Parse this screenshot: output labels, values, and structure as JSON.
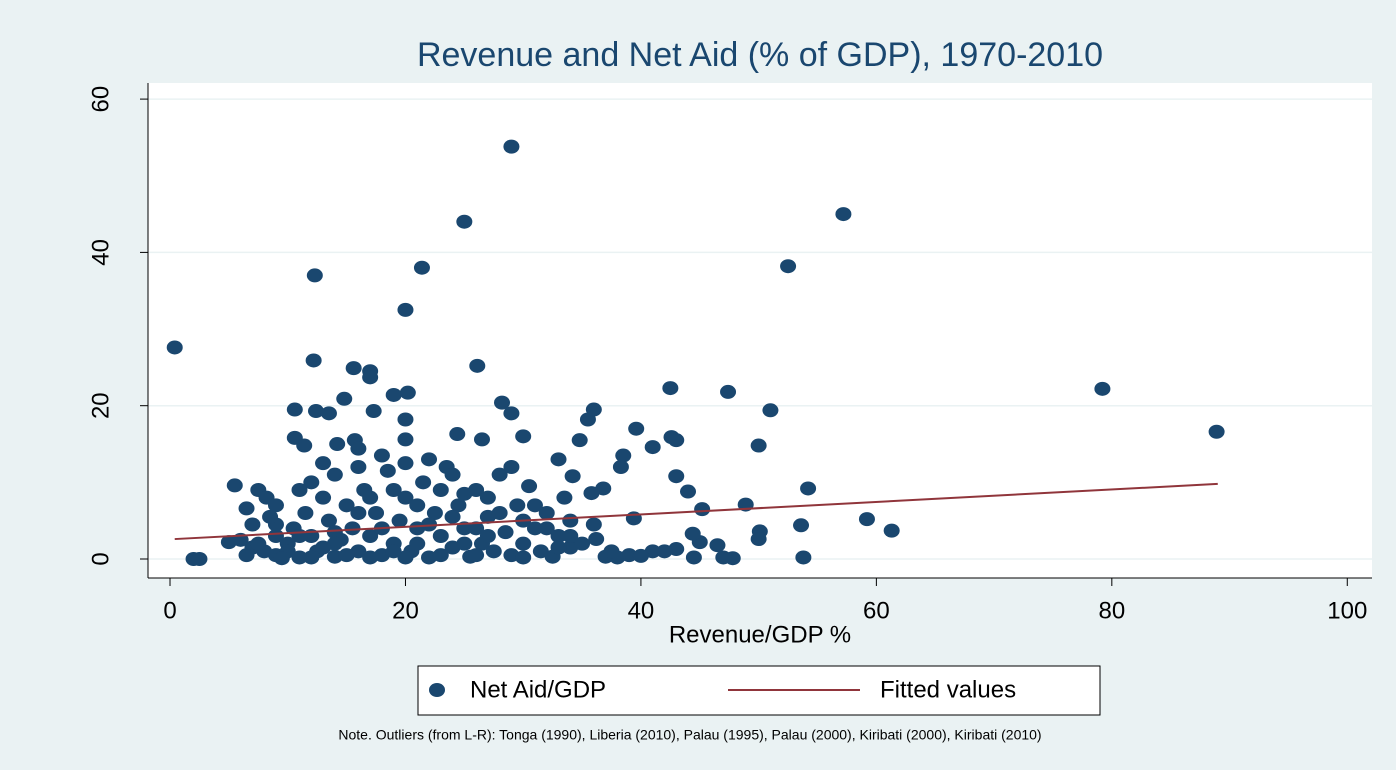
{
  "chart_data": {
    "type": "scatter",
    "title": "Revenue and Net Aid (% of GDP), 1970-2010",
    "x_label": "Revenue/GDP %",
    "note": "Note. Outliers (from L-R): Tonga (1990), Liberia (2010), Palau (1995), Palau (2000), Kiribati (2000), Kiribati (2010)",
    "xlim": [
      -1.87,
      102.1
    ],
    "xticks": [
      0,
      20,
      40,
      60,
      80,
      100
    ],
    "ylim": [
      -2.48,
      62.1
    ],
    "yticks": [
      0,
      20,
      40,
      60
    ],
    "grid": true,
    "legend": "bottom",
    "series": [
      {
        "name": "Net Aid/GDP",
        "color": "#1a476f",
        "x": [
          0.4,
          2,
          2.5,
          12.3,
          12.2,
          20,
          21.4,
          25,
          29,
          52.5,
          57.2,
          79.2,
          88.9,
          26.1,
          15.6,
          17,
          17,
          42.5,
          47.4,
          20.2,
          19,
          28.2,
          29,
          36,
          51,
          10.6,
          12.4,
          13.5,
          17.3,
          14.8,
          20,
          10.6,
          11.4,
          14.2,
          15.7,
          16,
          20,
          24.4,
          26.5,
          30,
          34.8,
          35.5,
          39.6,
          42.6,
          43,
          41,
          50,
          38.5,
          38.3,
          33,
          34.2,
          43,
          44,
          48.9,
          45.2,
          54.2,
          59.2,
          61.3,
          53.6,
          50.1,
          50,
          53.8,
          46.5,
          47,
          47.8,
          44.5,
          43,
          45,
          44.4,
          39.4,
          36.8,
          35.8,
          41,
          39,
          37,
          34,
          36,
          36.2,
          5.5,
          7.5,
          8.2,
          9,
          6.5,
          5,
          6,
          7,
          7,
          9,
          8,
          9,
          10,
          10.5,
          11,
          11.5,
          12,
          12.5,
          13,
          13.5,
          14,
          14.5,
          15,
          15.5,
          16,
          16.5,
          17,
          17.5,
          18,
          18.5,
          19,
          19.5,
          20,
          20.5,
          21,
          21.5,
          22,
          22.5,
          23,
          23.5,
          24,
          24.5,
          25,
          25.5,
          26,
          26.5,
          27,
          27.5,
          28,
          28.5,
          29,
          29.5,
          30,
          30.5,
          31,
          31.5,
          32,
          32.5,
          33,
          33.5,
          34,
          35,
          12,
          13,
          14,
          16,
          18,
          19,
          21,
          22,
          23,
          24,
          25,
          27,
          29,
          31,
          33,
          11,
          14,
          17,
          20,
          22,
          24,
          26,
          28,
          30,
          32,
          9,
          10,
          12,
          15,
          17,
          19,
          21,
          23,
          25,
          27,
          18,
          16,
          20,
          14,
          13,
          26,
          30,
          34,
          11,
          8.5,
          6.5,
          7.5,
          9.5,
          38,
          40,
          42,
          37.5
        ],
        "values": [
          27.6,
          0,
          0,
          37,
          25.9,
          32.5,
          38,
          44,
          53.8,
          38.2,
          45,
          22.2,
          16.6,
          25.2,
          24.9,
          24.5,
          23.7,
          22.3,
          21.8,
          21.7,
          21.4,
          20.4,
          19,
          19.5,
          19.4,
          19.5,
          19.3,
          19,
          19.3,
          20.9,
          18.2,
          15.8,
          14.8,
          15,
          15.5,
          14.4,
          15.6,
          16.3,
          15.6,
          16,
          15.5,
          18.2,
          17,
          15.9,
          15.5,
          14.6,
          14.8,
          13.5,
          12,
          13,
          10.8,
          10.8,
          8.8,
          7.1,
          6.5,
          9.2,
          5.2,
          3.7,
          4.4,
          3.6,
          2.6,
          0.2,
          1.8,
          0.2,
          0.1,
          0.2,
          1.3,
          2.2,
          3.3,
          5.3,
          9.2,
          8.6,
          1,
          0.5,
          0.3,
          1.5,
          4.5,
          2.6,
          9.6,
          9,
          8,
          7,
          6.6,
          2.2,
          2.5,
          1.5,
          4.5,
          3,
          1,
          0.5,
          2,
          4,
          0.2,
          6,
          3,
          1,
          8,
          5,
          0.3,
          2.5,
          7,
          4,
          1,
          9,
          3,
          6,
          0.5,
          11.5,
          2,
          5,
          8,
          1,
          4,
          10,
          0.2,
          6,
          3,
          12,
          1.5,
          7,
          4,
          0.3,
          9,
          2,
          5.5,
          1,
          11,
          3.5,
          0.5,
          7,
          2,
          9.5,
          4,
          1,
          6,
          0.3,
          3,
          8,
          5,
          2,
          10,
          12.5,
          3.5,
          6,
          13.5,
          9,
          7,
          13,
          9,
          11,
          2,
          8,
          12,
          7,
          1.5,
          9,
          11,
          8,
          0.2,
          4.5,
          5.5,
          0.5,
          6,
          0.2,
          4,
          4.5,
          1,
          0.2,
          0.5,
          0.2,
          1,
          2,
          0.5,
          8.5,
          3,
          4,
          12,
          12.5,
          2,
          1.5,
          4,
          5,
          3,
          3,
          5.5,
          0.5,
          2,
          0.1,
          0.2,
          0.4,
          1,
          1
        ]
      },
      {
        "name": "Fitted values",
        "color": "#90353b",
        "type": "line",
        "x": [
          0.4,
          89
        ],
        "values": [
          2.6,
          9.8
        ]
      }
    ]
  }
}
